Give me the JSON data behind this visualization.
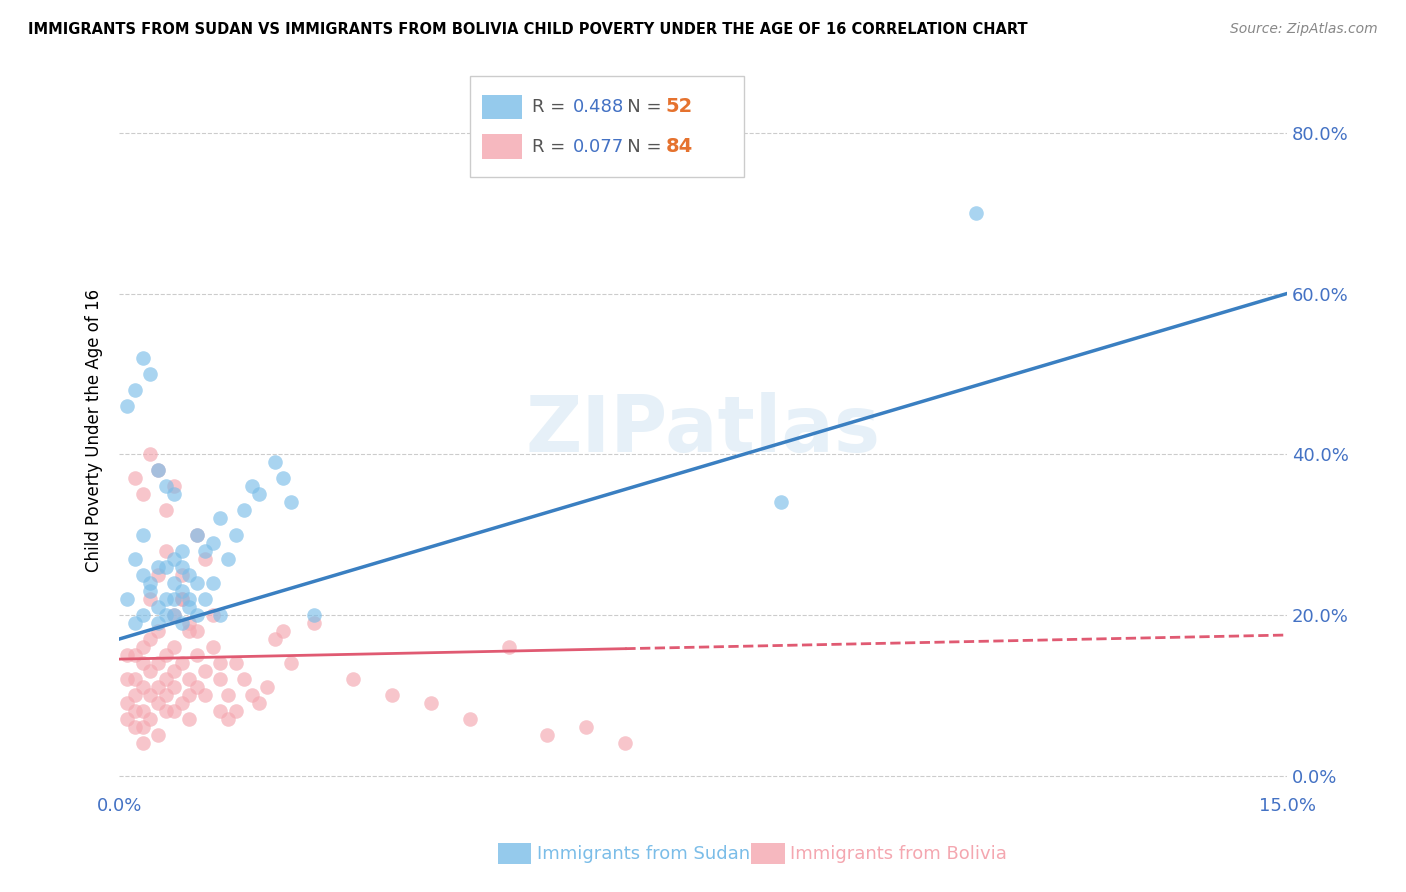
{
  "title": "IMMIGRANTS FROM SUDAN VS IMMIGRANTS FROM BOLIVIA CHILD POVERTY UNDER THE AGE OF 16 CORRELATION CHART",
  "source": "Source: ZipAtlas.com",
  "ylabel": "Child Poverty Under the Age of 16",
  "xlabel_sudan": "Immigrants from Sudan",
  "xlabel_bolivia": "Immigrants from Bolivia",
  "R_sudan": 0.488,
  "N_sudan": 52,
  "R_bolivia": 0.077,
  "N_bolivia": 84,
  "xlim": [
    0.0,
    0.15
  ],
  "ylim": [
    -0.02,
    0.88
  ],
  "yticks": [
    0.0,
    0.2,
    0.4,
    0.6,
    0.8
  ],
  "ytick_labels": [
    "0.0%",
    "20.0%",
    "40.0%",
    "60.0%",
    "80.0%"
  ],
  "xticks": [
    0.0,
    0.15
  ],
  "xtick_labels": [
    "0.0%",
    "15.0%"
  ],
  "color_sudan": "#7bbde8",
  "color_bolivia": "#f4a7b0",
  "line_color_sudan": "#3a7fc1",
  "line_color_bolivia": "#e05a72",
  "watermark": "ZIPatlas",
  "sudan_x": [
    0.001,
    0.002,
    0.002,
    0.003,
    0.003,
    0.003,
    0.004,
    0.004,
    0.005,
    0.005,
    0.005,
    0.006,
    0.006,
    0.006,
    0.007,
    0.007,
    0.007,
    0.007,
    0.008,
    0.008,
    0.008,
    0.009,
    0.009,
    0.01,
    0.01,
    0.011,
    0.011,
    0.012,
    0.012,
    0.013,
    0.013,
    0.014,
    0.015,
    0.016,
    0.017,
    0.018,
    0.02,
    0.021,
    0.022,
    0.025,
    0.001,
    0.002,
    0.003,
    0.004,
    0.005,
    0.006,
    0.007,
    0.008,
    0.009,
    0.01,
    0.085,
    0.11
  ],
  "sudan_y": [
    0.22,
    0.27,
    0.19,
    0.25,
    0.2,
    0.3,
    0.24,
    0.23,
    0.26,
    0.21,
    0.19,
    0.22,
    0.26,
    0.2,
    0.24,
    0.27,
    0.22,
    0.2,
    0.28,
    0.23,
    0.19,
    0.25,
    0.21,
    0.3,
    0.24,
    0.28,
    0.22,
    0.29,
    0.24,
    0.32,
    0.2,
    0.27,
    0.3,
    0.33,
    0.36,
    0.35,
    0.39,
    0.37,
    0.34,
    0.2,
    0.46,
    0.48,
    0.52,
    0.5,
    0.38,
    0.36,
    0.35,
    0.26,
    0.22,
    0.2,
    0.34,
    0.7
  ],
  "bolivia_x": [
    0.001,
    0.001,
    0.001,
    0.001,
    0.002,
    0.002,
    0.002,
    0.002,
    0.002,
    0.003,
    0.003,
    0.003,
    0.003,
    0.003,
    0.003,
    0.004,
    0.004,
    0.004,
    0.004,
    0.004,
    0.005,
    0.005,
    0.005,
    0.005,
    0.005,
    0.005,
    0.006,
    0.006,
    0.006,
    0.006,
    0.006,
    0.007,
    0.007,
    0.007,
    0.007,
    0.007,
    0.008,
    0.008,
    0.008,
    0.008,
    0.009,
    0.009,
    0.009,
    0.009,
    0.01,
    0.01,
    0.01,
    0.011,
    0.011,
    0.011,
    0.012,
    0.012,
    0.013,
    0.013,
    0.013,
    0.014,
    0.014,
    0.015,
    0.015,
    0.016,
    0.017,
    0.018,
    0.019,
    0.02,
    0.021,
    0.022,
    0.025,
    0.03,
    0.035,
    0.04,
    0.045,
    0.05,
    0.055,
    0.06,
    0.065,
    0.002,
    0.003,
    0.004,
    0.005,
    0.006,
    0.007,
    0.008,
    0.009,
    0.01
  ],
  "bolivia_y": [
    0.15,
    0.12,
    0.09,
    0.07,
    0.15,
    0.12,
    0.1,
    0.08,
    0.06,
    0.14,
    0.11,
    0.08,
    0.06,
    0.16,
    0.04,
    0.13,
    0.1,
    0.17,
    0.07,
    0.22,
    0.14,
    0.11,
    0.18,
    0.09,
    0.25,
    0.05,
    0.12,
    0.15,
    0.08,
    0.28,
    0.1,
    0.13,
    0.2,
    0.11,
    0.16,
    0.08,
    0.25,
    0.09,
    0.14,
    0.22,
    0.12,
    0.18,
    0.07,
    0.1,
    0.15,
    0.11,
    0.3,
    0.1,
    0.27,
    0.13,
    0.2,
    0.16,
    0.14,
    0.12,
    0.08,
    0.1,
    0.07,
    0.14,
    0.08,
    0.12,
    0.1,
    0.09,
    0.11,
    0.17,
    0.18,
    0.14,
    0.19,
    0.12,
    0.1,
    0.09,
    0.07,
    0.16,
    0.05,
    0.06,
    0.04,
    0.37,
    0.35,
    0.4,
    0.38,
    0.33,
    0.36,
    0.22,
    0.19,
    0.18
  ]
}
